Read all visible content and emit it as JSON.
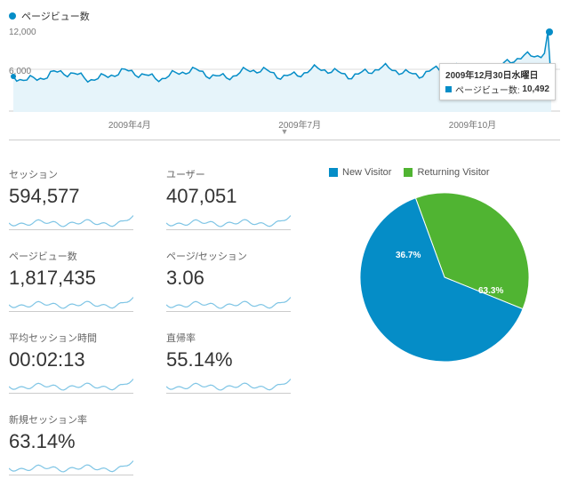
{
  "main_chart": {
    "title": "ページビュー数",
    "title_color": "#058dc7",
    "y_max_label": "12,000",
    "y_mid_label": "6,000",
    "x_labels": [
      "2009年4月",
      "2009年7月",
      "2009年10月"
    ],
    "line_color": "#058dc7",
    "fill_color": "#e6f4fa",
    "tooltip": {
      "date": "2009年12月30日水曜日",
      "metric_label": "ページビュー数:",
      "value": "10,492"
    }
  },
  "metrics": {
    "sessions": {
      "label": "セッション",
      "value": "594,577"
    },
    "users": {
      "label": "ユーザー",
      "value": "407,051"
    },
    "pageviews": {
      "label": "ページビュー数",
      "value": "1,817,435"
    },
    "pages_per_session": {
      "label": "ページ/セッション",
      "value": "3.06"
    },
    "avg_duration": {
      "label": "平均セッション時間",
      "value": "00:02:13"
    },
    "bounce_rate": {
      "label": "直帰率",
      "value": "55.14%"
    },
    "new_session_rate": {
      "label": "新規セッション率",
      "value": "63.14%"
    }
  },
  "sparkline_color": "#7fc5e5",
  "pie": {
    "legend_new": "New Visitor",
    "legend_returning": "Returning Visitor",
    "new_pct": 63.3,
    "returning_pct": 36.7,
    "new_label": "63.3%",
    "returning_label": "36.7%",
    "new_color": "#058dc7",
    "returning_color": "#50b432"
  }
}
